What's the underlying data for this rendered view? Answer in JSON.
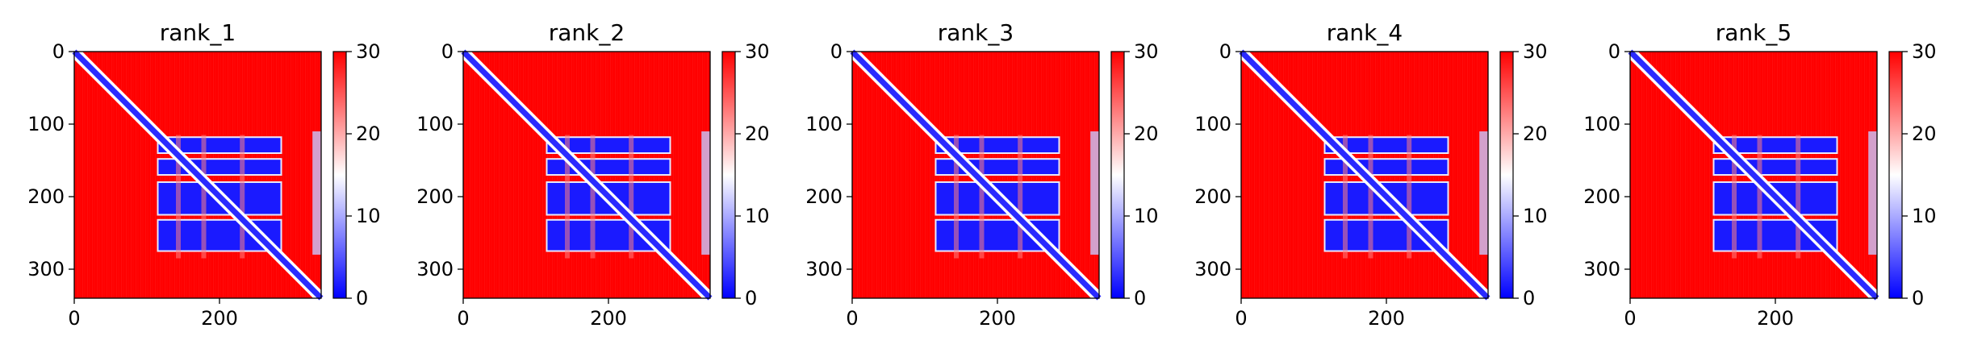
{
  "chart_data": [
    {
      "type": "heatmap",
      "title": "rank_1",
      "xticks": [
        0,
        200
      ],
      "yticks": [
        0,
        100,
        200,
        300
      ],
      "xlim": [
        0,
        340
      ],
      "ylim": [
        340,
        0
      ],
      "colorbar": {
        "ticks": [
          0,
          10,
          20,
          30
        ],
        "range": [
          0,
          30
        ],
        "colors": [
          "#0000ff",
          "#ffffff",
          "#ff0000"
        ]
      }
    },
    {
      "type": "heatmap",
      "title": "rank_2",
      "xticks": [
        0,
        200
      ],
      "yticks": [
        0,
        100,
        200,
        300
      ],
      "xlim": [
        0,
        340
      ],
      "ylim": [
        340,
        0
      ],
      "colorbar": {
        "ticks": [
          0,
          10,
          20,
          30
        ],
        "range": [
          0,
          30
        ],
        "colors": [
          "#0000ff",
          "#ffffff",
          "#ff0000"
        ]
      }
    },
    {
      "type": "heatmap",
      "title": "rank_3",
      "xticks": [
        0,
        200
      ],
      "yticks": [
        0,
        100,
        200,
        300
      ],
      "xlim": [
        0,
        340
      ],
      "ylim": [
        340,
        0
      ],
      "colorbar": {
        "ticks": [
          0,
          10,
          20,
          30
        ],
        "range": [
          0,
          30
        ],
        "colors": [
          "#0000ff",
          "#ffffff",
          "#ff0000"
        ]
      }
    },
    {
      "type": "heatmap",
      "title": "rank_4",
      "xticks": [
        0,
        200
      ],
      "yticks": [
        0,
        100,
        200,
        300
      ],
      "xlim": [
        0,
        340
      ],
      "ylim": [
        340,
        0
      ],
      "colorbar": {
        "ticks": [
          0,
          10,
          20,
          30
        ],
        "range": [
          0,
          30
        ],
        "colors": [
          "#0000ff",
          "#ffffff",
          "#ff0000"
        ]
      }
    },
    {
      "type": "heatmap",
      "title": "rank_5",
      "xticks": [
        0,
        200
      ],
      "yticks": [
        0,
        100,
        200,
        300
      ],
      "xlim": [
        0,
        340
      ],
      "ylim": [
        340,
        0
      ],
      "colorbar": {
        "ticks": [
          0,
          10,
          20,
          30
        ],
        "range": [
          0,
          30
        ],
        "colors": [
          "#0000ff",
          "#ffffff",
          "#ff0000"
        ]
      }
    }
  ]
}
